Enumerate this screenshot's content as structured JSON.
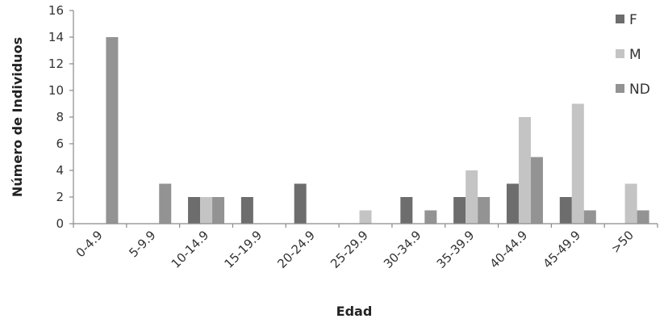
{
  "chart_data": {
    "type": "bar",
    "xlabel": "Edad",
    "ylabel": "Número de Individuos",
    "categories": [
      "0-4.9",
      "5-9.9",
      "10-14.9",
      "15-19.9",
      "20-24.9",
      "25-29.9",
      "30-34.9",
      "35-39.9",
      "40-44.9",
      "45-49.9",
      ">50"
    ],
    "series": [
      {
        "name": "F",
        "color": "#6d6d6d",
        "values": [
          0,
          0,
          2,
          2,
          3,
          0,
          2,
          2,
          3,
          2,
          0
        ]
      },
      {
        "name": "M",
        "color": "#c4c4c4",
        "values": [
          0,
          0,
          2,
          0,
          0,
          1,
          0,
          4,
          8,
          9,
          3
        ]
      },
      {
        "name": "ND",
        "color": "#939393",
        "values": [
          14,
          3,
          2,
          0,
          0,
          0,
          1,
          2,
          5,
          1,
          1
        ]
      }
    ],
    "ylim": [
      0,
      16
    ],
    "yticks": [
      0,
      2,
      4,
      6,
      8,
      10,
      12,
      14,
      16
    ],
    "legend_position": "right",
    "grid": false
  }
}
